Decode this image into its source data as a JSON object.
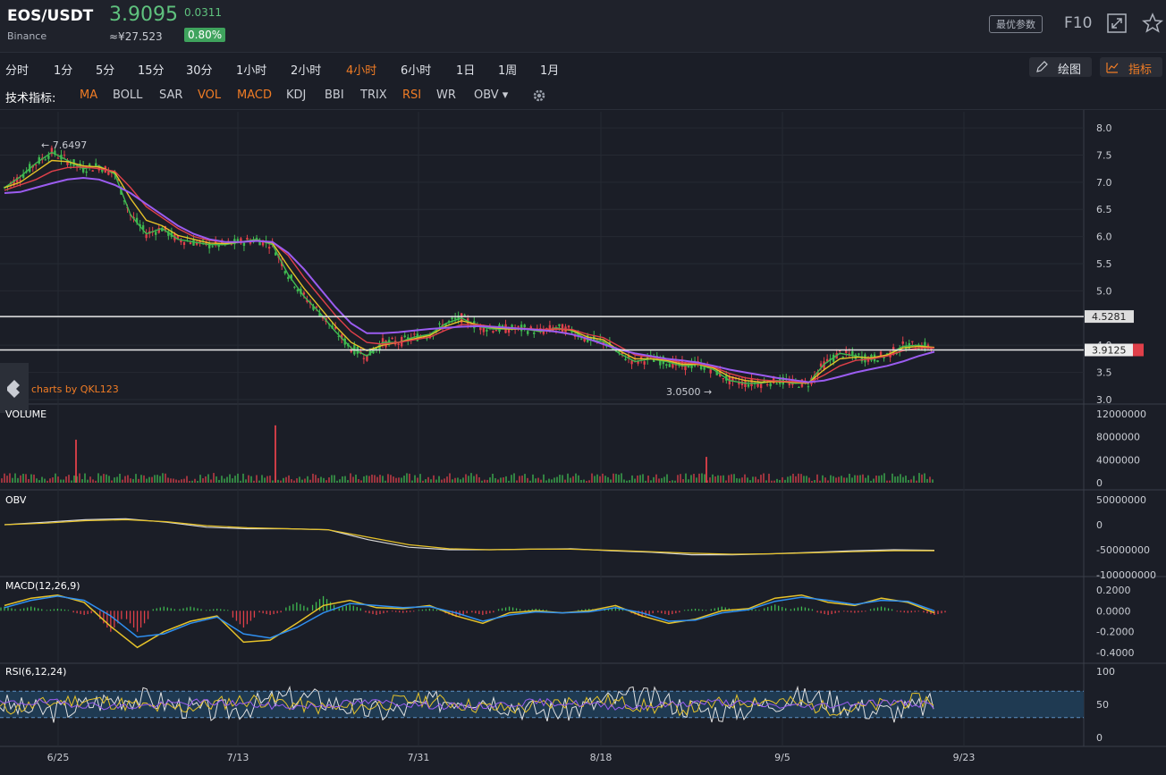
{
  "header": {
    "symbol": "EOS/USDT",
    "exchange": "Binance",
    "price": "3.9095",
    "change": "0.0311",
    "cny_price": "≈¥27.523",
    "change_pct": "0.80%",
    "best_params_label": "最优参数",
    "f10_label": "F10",
    "icons": [
      "expand-icon",
      "star-icon"
    ]
  },
  "timeframes": [
    {
      "label": "分时",
      "active": false
    },
    {
      "label": "1分",
      "active": false
    },
    {
      "label": "5分",
      "active": false
    },
    {
      "label": "15分",
      "active": false
    },
    {
      "label": "30分",
      "active": false
    },
    {
      "label": "1小时",
      "active": false
    },
    {
      "label": "2小时",
      "active": false
    },
    {
      "label": "4小时",
      "active": true
    },
    {
      "label": "6小时",
      "active": false
    },
    {
      "label": "1日",
      "active": false
    },
    {
      "label": "1周",
      "active": false
    },
    {
      "label": "1月",
      "active": false
    }
  ],
  "tools": {
    "draw_label": "绘图",
    "indicators_label": "指标"
  },
  "indicators": {
    "title": "技术指标:",
    "items": [
      {
        "label": "MA",
        "active": true
      },
      {
        "label": "BOLL",
        "active": false
      },
      {
        "label": "SAR",
        "active": false
      },
      {
        "label": "VOL",
        "active": true
      },
      {
        "label": "MACD",
        "active": true
      },
      {
        "label": "KDJ",
        "active": false
      },
      {
        "label": "BBI",
        "active": false
      },
      {
        "label": "TRIX",
        "active": false
      },
      {
        "label": "RSI",
        "active": true
      },
      {
        "label": "WR",
        "active": false
      },
      {
        "label": "OBV ▾",
        "active": false
      }
    ]
  },
  "colors": {
    "up": "#3fb950",
    "down": "#e0404a",
    "accent": "#f07c25",
    "ma_purple": "#9b5cf0",
    "ma_yellow": "#e6c229",
    "ma_red": "#e0404a",
    "ma_green": "#3fb950",
    "macd_blue": "#2f8ff0"
  },
  "chart_data": [
    {
      "type": "line",
      "title": "price",
      "xticks": [
        "6/25",
        "7/13",
        "7/31",
        "8/18",
        "9/5",
        "9/23"
      ],
      "yticks": [
        "8.0",
        "7.5",
        "7.0",
        "6.5",
        "6.0",
        "5.5",
        "5.0",
        "4.5",
        "4.0",
        "3.5",
        "3.0"
      ],
      "ylim": [
        2.95,
        8.1
      ],
      "high_label": "← 7.6497",
      "low_label": "3.0500 →",
      "levels": [
        {
          "value": 4.5281,
          "label": "4.5281"
        },
        {
          "value": 3.9125,
          "label": "3.9125"
        }
      ],
      "watermark": "charts by QKL123",
      "series": [
        {
          "values": [
            6.9,
            7.1,
            7.35,
            7.55,
            7.4,
            7.25,
            7.3,
            7.15,
            6.4,
            6.05,
            6.15,
            5.95,
            5.9,
            5.85,
            5.85,
            5.9,
            5.95,
            5.85,
            5.3,
            4.9,
            4.6,
            4.25,
            3.95,
            3.8,
            4.05,
            4.05,
            4.15,
            4.2,
            4.4,
            4.5,
            4.35,
            4.3,
            4.3,
            4.3,
            4.25,
            4.32,
            4.27,
            4.1,
            4.07,
            3.85,
            3.7,
            3.75,
            3.7,
            3.62,
            3.65,
            3.55,
            3.35,
            3.3,
            3.3,
            3.35,
            3.3,
            3.3,
            3.65,
            3.85,
            3.8,
            3.75,
            3.82,
            3.98,
            4.0,
            3.95
          ]
        },
        {
          "values": [
            6.9,
            7.0,
            7.2,
            7.4,
            7.38,
            7.3,
            7.28,
            7.18,
            6.7,
            6.3,
            6.2,
            6.02,
            5.95,
            5.88,
            5.87,
            5.9,
            5.93,
            5.88,
            5.45,
            5.05,
            4.7,
            4.35,
            4.05,
            3.9,
            4.0,
            4.05,
            4.12,
            4.18,
            4.35,
            4.45,
            4.38,
            4.32,
            4.3,
            4.3,
            4.27,
            4.3,
            4.28,
            4.15,
            4.1,
            3.9,
            3.75,
            3.75,
            3.72,
            3.65,
            3.65,
            3.58,
            3.42,
            3.35,
            3.32,
            3.33,
            3.32,
            3.3,
            3.55,
            3.75,
            3.78,
            3.77,
            3.82,
            3.95,
            3.98,
            3.96
          ]
        },
        {
          "values": [
            6.85,
            6.95,
            7.05,
            7.2,
            7.27,
            7.28,
            7.25,
            7.2,
            6.9,
            6.55,
            6.35,
            6.15,
            6.0,
            5.93,
            5.9,
            5.9,
            5.92,
            5.9,
            5.65,
            5.25,
            4.9,
            4.55,
            4.25,
            4.05,
            4.02,
            4.05,
            4.1,
            4.15,
            4.28,
            4.38,
            4.38,
            4.34,
            4.32,
            4.31,
            4.29,
            4.3,
            4.29,
            4.2,
            4.14,
            3.98,
            3.82,
            3.78,
            3.74,
            3.68,
            3.66,
            3.6,
            3.48,
            3.4,
            3.36,
            3.34,
            3.33,
            3.31,
            3.45,
            3.62,
            3.72,
            3.75,
            3.8,
            3.9,
            3.95,
            3.95
          ]
        },
        {
          "values": [
            6.8,
            6.82,
            6.9,
            6.98,
            7.05,
            7.08,
            7.05,
            6.95,
            6.8,
            6.6,
            6.4,
            6.2,
            6.05,
            5.95,
            5.9,
            5.9,
            5.92,
            5.9,
            5.7,
            5.4,
            5.05,
            4.7,
            4.4,
            4.22,
            4.22,
            4.24,
            4.27,
            4.3,
            4.32,
            4.34,
            4.35,
            4.34,
            4.32,
            4.3,
            4.28,
            4.25,
            4.2,
            4.12,
            4.02,
            3.92,
            3.85,
            3.8,
            3.75,
            3.72,
            3.68,
            3.62,
            3.55,
            3.5,
            3.45,
            3.4,
            3.36,
            3.32,
            3.35,
            3.42,
            3.5,
            3.56,
            3.62,
            3.7,
            3.8,
            3.88
          ]
        }
      ]
    },
    {
      "type": "bar",
      "title": "VOLUME",
      "yticks": [
        "12000000",
        "8000000",
        "4000000",
        "0"
      ],
      "ylim": [
        0,
        12000000
      ],
      "peaks": [
        {
          "x": "6/25",
          "value": 7500000
        },
        {
          "x": "7/13",
          "value": 10000000
        },
        {
          "x": "8/18",
          "value": 4500000
        }
      ]
    },
    {
      "type": "line",
      "title": "OBV",
      "yticks": [
        "50000000",
        "0",
        "-50000000",
        "-100000000"
      ],
      "ylim": [
        -100000000,
        50000000
      ],
      "series": [
        {
          "values": [
            0,
            5000000,
            10000000,
            12000000,
            5000000,
            -5000000,
            -8000000,
            -8000000,
            -10000000,
            -30000000,
            -45000000,
            -50000000,
            -50000000,
            -49000000,
            -48000000,
            -52000000,
            -55000000,
            -60000000,
            -60000000,
            -58000000,
            -55000000,
            -52000000,
            -50000000,
            -51000000
          ]
        },
        {
          "values": [
            0,
            3000000,
            8000000,
            10000000,
            6000000,
            -2000000,
            -6000000,
            -8000000,
            -10000000,
            -25000000,
            -40000000,
            -48000000,
            -50000000,
            -49000000,
            -49000000,
            -51000000,
            -54000000,
            -57000000,
            -59000000,
            -58000000,
            -56000000,
            -54000000,
            -52000000,
            -52000000
          ]
        }
      ]
    },
    {
      "type": "line",
      "title": "MACD(12,26,9)",
      "yticks": [
        "0.2000",
        "0.0000",
        "-0.2000",
        "-0.4000"
      ],
      "ylim": [
        -0.45,
        0.25
      ],
      "series": [
        {
          "values": [
            0.05,
            0.12,
            0.15,
            0.08,
            -0.15,
            -0.35,
            -0.2,
            -0.1,
            -0.05,
            -0.3,
            -0.28,
            -0.12,
            0.05,
            0.1,
            0.03,
            0.02,
            0.05,
            -0.05,
            -0.12,
            -0.02,
            0.0,
            -0.02,
            0.0,
            0.05,
            -0.05,
            -0.12,
            -0.08,
            0.0,
            0.02,
            0.12,
            0.15,
            0.08,
            0.05,
            0.12,
            0.08,
            -0.02
          ]
        },
        {
          "values": [
            0.03,
            0.1,
            0.14,
            0.1,
            -0.05,
            -0.25,
            -0.22,
            -0.12,
            -0.06,
            -0.22,
            -0.26,
            -0.16,
            -0.02,
            0.07,
            0.05,
            0.03,
            0.04,
            -0.02,
            -0.1,
            -0.04,
            -0.01,
            -0.02,
            -0.01,
            0.03,
            -0.02,
            -0.1,
            -0.09,
            -0.02,
            0.01,
            0.09,
            0.13,
            0.1,
            0.06,
            0.1,
            0.09,
            0.0
          ]
        }
      ]
    },
    {
      "type": "line",
      "title": "RSI(6,12,24)",
      "yticks": [
        "100",
        "50",
        "0"
      ],
      "ylim": [
        0,
        100
      ],
      "band": [
        30,
        70
      ]
    }
  ]
}
